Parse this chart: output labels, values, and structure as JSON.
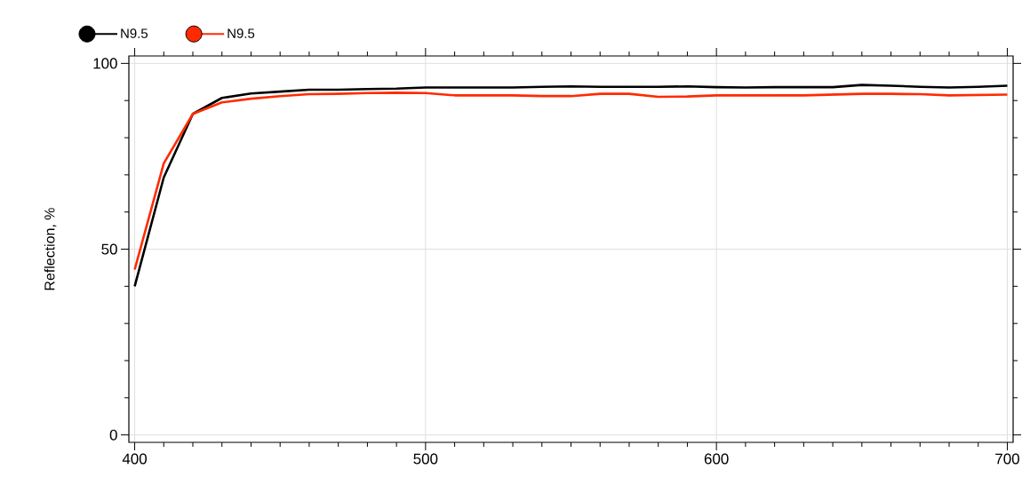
{
  "chart_data": {
    "type": "line",
    "ylabel": "Reflection, %",
    "x": [
      400,
      410,
      420,
      430,
      440,
      450,
      460,
      470,
      480,
      490,
      500,
      510,
      520,
      530,
      540,
      550,
      560,
      570,
      580,
      590,
      600,
      610,
      620,
      630,
      640,
      650,
      660,
      670,
      680,
      690,
      700
    ],
    "series": [
      {
        "name": "N9.5",
        "color": "#000000",
        "values": [
          40,
          69.3,
          86.4,
          90.7,
          91.9,
          92.4,
          92.9,
          92.9,
          93.1,
          93.2,
          93.5,
          93.5,
          93.5,
          93.5,
          93.7,
          93.8,
          93.7,
          93.7,
          93.7,
          93.8,
          93.6,
          93.5,
          93.6,
          93.6,
          93.6,
          94.2,
          94,
          93.7,
          93.5,
          93.7,
          94
        ]
      },
      {
        "name": "N9.5",
        "color": "#ff2a00",
        "values": [
          44.5,
          73.1,
          86.4,
          89.5,
          90.5,
          91.2,
          91.7,
          91.8,
          92,
          92.1,
          92,
          91.4,
          91.4,
          91.4,
          91.2,
          91.2,
          91.8,
          91.8,
          91,
          91.1,
          91.4,
          91.4,
          91.4,
          91.4,
          91.6,
          91.8,
          91.8,
          91.7,
          91.4,
          91.5,
          91.6
        ]
      }
    ],
    "xlim": [
      398,
      702
    ],
    "ylim": [
      -2,
      102
    ],
    "xticks": [
      400,
      {
        "value": 410,
        "label": null
      },
      {
        "value": 420,
        "label": null
      },
      {
        "value": 430,
        "label": null
      },
      {
        "value": 440,
        "label": null
      },
      {
        "value": 450,
        "label": null
      },
      {
        "value": 460,
        "label": null
      },
      {
        "value": 470,
        "label": null
      },
      {
        "value": 480,
        "label": null
      },
      {
        "value": 490,
        "label": null
      },
      500,
      {
        "value": 510,
        "label": null
      },
      {
        "value": 520,
        "label": null
      },
      {
        "value": 530,
        "label": null
      },
      {
        "value": 540,
        "label": null
      },
      {
        "value": 550,
        "label": null
      },
      {
        "value": 560,
        "label": null
      },
      {
        "value": 570,
        "label": null
      },
      {
        "value": 580,
        "label": null
      },
      {
        "value": 590,
        "label": null
      },
      600,
      {
        "value": 610,
        "label": null
      },
      {
        "value": 620,
        "label": null
      },
      {
        "value": 630,
        "label": null
      },
      {
        "value": 640,
        "label": null
      },
      {
        "value": 650,
        "label": null
      },
      {
        "value": 660,
        "label": null
      },
      {
        "value": 670,
        "label": null
      },
      {
        "value": 680,
        "label": null
      },
      {
        "value": 690,
        "label": null
      },
      700
    ],
    "yticks": [
      0,
      {
        "value": 10,
        "label": null
      },
      {
        "value": 20,
        "label": null
      },
      {
        "value": 30,
        "label": null
      },
      {
        "value": 40,
        "label": null
      },
      50,
      {
        "value": 60,
        "label": null
      },
      {
        "value": 70,
        "label": null
      },
      {
        "value": 80,
        "label": null
      },
      {
        "value": 90,
        "label": null
      },
      100
    ],
    "grid": true,
    "legend": "top left",
    "line_style": "solid"
  }
}
